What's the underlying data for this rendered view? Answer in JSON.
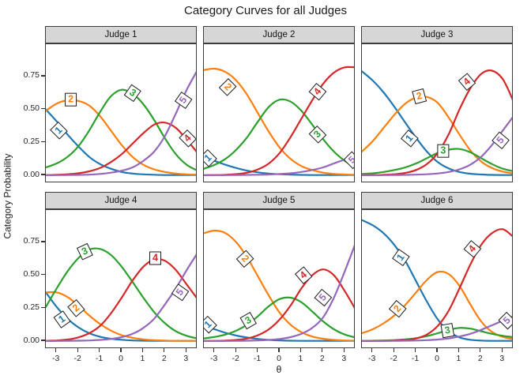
{
  "title": "Category Curves for all Judges",
  "y_axis": {
    "label": "Category  Probability",
    "tick_values": [
      0,
      0.25,
      0.5,
      0.75
    ],
    "tick_labels": [
      "0.00",
      "0.25",
      "0.50",
      "0.75"
    ]
  },
  "x_axis": {
    "label": "θ",
    "tick_values": [
      -3,
      -2,
      -1,
      0,
      1,
      2,
      3
    ],
    "tick_labels": [
      "-3",
      "-2",
      "-1",
      "0",
      "1",
      "2",
      "3"
    ]
  },
  "style": {
    "background": "#FFFFFF",
    "strip_fill": "#D6D6D6",
    "strip_border": "#3C3C3C",
    "panel_border": "#3C3C3C",
    "category_colors": {
      "1": "#1F77B4",
      "2": "#FF7F0E",
      "3": "#2CA02C",
      "4": "#D62728",
      "5": "#9467BD"
    }
  },
  "chart_data": {
    "type": "line",
    "title": "Category Curves for all Judges",
    "xlabel": "θ",
    "ylabel": "Category Probability",
    "xlim": [
      -3.5,
      3.5
    ],
    "ylim": [
      0,
      1
    ],
    "grid": false,
    "legend": "none (curves labeled in-plot with numbered boxes)",
    "x": [
      -3.5,
      -3,
      -2.5,
      -2,
      -1.5,
      -1,
      -0.5,
      0,
      0.5,
      1,
      1.5,
      2,
      2.5,
      3,
      3.5
    ],
    "panels": [
      {
        "facet": "Judge 1",
        "series": [
          {
            "name": "1",
            "color_key": "1",
            "values": [
              0.5,
              0.41,
              0.31,
              0.22,
              0.14,
              0.085,
              0.05,
              0.025,
              0.013,
              0.007,
              0.004,
              0.002,
              0.002,
              0.002,
              0.002
            ],
            "label": {
              "theta": -2.9,
              "p": 0.34,
              "angle": -45
            }
          },
          {
            "name": "2",
            "color_key": "2",
            "values": [
              0.49,
              0.545,
              0.57,
              0.565,
              0.53,
              0.45,
              0.34,
              0.23,
              0.14,
              0.08,
              0.045,
              0.025,
              0.013,
              0.007,
              0.004
            ],
            "label": {
              "theta": -2.35,
              "p": 0.575,
              "angle": 0
            }
          },
          {
            "name": "3",
            "color_key": "3",
            "values": [
              0.06,
              0.09,
              0.14,
              0.22,
              0.34,
              0.48,
              0.6,
              0.65,
              0.62,
              0.54,
              0.42,
              0.28,
              0.16,
              0.08,
              0.035
            ],
            "label": {
              "theta": 0.5,
              "p": 0.625,
              "angle": 35
            }
          },
          {
            "name": "4",
            "color_key": "4",
            "values": [
              0.002,
              0.004,
              0.008,
              0.015,
              0.03,
              0.055,
              0.1,
              0.16,
              0.24,
              0.32,
              0.385,
              0.4,
              0.36,
              0.27,
              0.17
            ],
            "label": {
              "theta": 3.05,
              "p": 0.28,
              "angle": -45
            }
          },
          {
            "name": "5",
            "color_key": "5",
            "values": [
              0.001,
              0.001,
              0.002,
              0.003,
              0.005,
              0.01,
              0.02,
              0.035,
              0.06,
              0.11,
              0.18,
              0.3,
              0.47,
              0.65,
              0.8
            ],
            "label": {
              "theta": 2.85,
              "p": 0.57,
              "angle": -55
            }
          }
        ]
      },
      {
        "facet": "Judge 2",
        "series": [
          {
            "name": "1",
            "color_key": "1",
            "values": [
              0.15,
              0.11,
              0.08,
              0.055,
              0.035,
              0.022,
              0.013,
              0.008,
              0.005,
              0.003,
              0.002,
              0.002,
              0.002,
              0.002,
              0.002
            ],
            "label": {
              "theta": -3.3,
              "p": 0.13,
              "angle": -45
            }
          },
          {
            "name": "2",
            "color_key": "2",
            "values": [
              0.8,
              0.81,
              0.785,
              0.72,
              0.61,
              0.47,
              0.33,
              0.21,
              0.125,
              0.07,
              0.04,
              0.02,
              0.01,
              0.006,
              0.003
            ],
            "label": {
              "theta": -2.4,
              "p": 0.67,
              "angle": 45
            }
          },
          {
            "name": "3",
            "color_key": "3",
            "values": [
              0.05,
              0.08,
              0.125,
              0.195,
              0.29,
              0.41,
              0.52,
              0.575,
              0.56,
              0.49,
              0.385,
              0.275,
              0.18,
              0.11,
              0.06
            ],
            "label": {
              "theta": 1.75,
              "p": 0.31,
              "angle": -45
            }
          },
          {
            "name": "4",
            "color_key": "4",
            "values": [
              0.001,
              0.002,
              0.004,
              0.009,
              0.02,
              0.045,
              0.09,
              0.17,
              0.29,
              0.43,
              0.57,
              0.695,
              0.78,
              0.82,
              0.82
            ],
            "label": {
              "theta": 1.75,
              "p": 0.635,
              "angle": -50
            }
          },
          {
            "name": "5",
            "color_key": "5",
            "values": [
              0.001,
              0.001,
              0.001,
              0.002,
              0.003,
              0.004,
              0.006,
              0.01,
              0.015,
              0.025,
              0.04,
              0.06,
              0.09,
              0.12,
              0.155
            ],
            "label": {
              "theta": 3.35,
              "p": 0.115,
              "angle": -45
            }
          }
        ]
      },
      {
        "facet": "Judge 3",
        "series": [
          {
            "name": "1",
            "color_key": "1",
            "values": [
              0.79,
              0.72,
              0.63,
              0.52,
              0.4,
              0.285,
              0.18,
              0.1,
              0.052,
              0.025,
              0.012,
              0.006,
              0.003,
              0.002,
              0.002
            ],
            "label": {
              "theta": -1.3,
              "p": 0.28,
              "angle": -50
            }
          },
          {
            "name": "2",
            "color_key": "2",
            "values": [
              0.18,
              0.26,
              0.36,
              0.46,
              0.545,
              0.59,
              0.595,
              0.55,
              0.44,
              0.31,
              0.19,
              0.105,
              0.055,
              0.028,
              0.014
            ],
            "label": {
              "theta": -0.85,
              "p": 0.6,
              "angle": -15
            }
          },
          {
            "name": "3",
            "color_key": "3",
            "values": [
              0.01,
              0.015,
              0.025,
              0.04,
              0.06,
              0.09,
              0.13,
              0.17,
              0.195,
              0.2,
              0.175,
              0.13,
              0.085,
              0.05,
              0.03
            ],
            "label": {
              "theta": 0.25,
              "p": 0.185,
              "angle": 0
            }
          },
          {
            "name": "4",
            "color_key": "4",
            "values": [
              0.001,
              0.002,
              0.004,
              0.008,
              0.018,
              0.04,
              0.085,
              0.17,
              0.31,
              0.5,
              0.66,
              0.77,
              0.795,
              0.73,
              0.56
            ],
            "label": {
              "theta": 1.35,
              "p": 0.71,
              "angle": -40
            }
          },
          {
            "name": "5",
            "color_key": "5",
            "values": [
              0.001,
              0.001,
              0.001,
              0.002,
              0.003,
              0.005,
              0.008,
              0.014,
              0.025,
              0.045,
              0.08,
              0.14,
              0.23,
              0.34,
              0.45
            ],
            "label": {
              "theta": 2.9,
              "p": 0.265,
              "angle": -50
            }
          }
        ]
      },
      {
        "facet": "Judge 4",
        "series": [
          {
            "name": "1",
            "color_key": "1",
            "values": [
              0.37,
              0.26,
              0.17,
              0.105,
              0.06,
              0.033,
              0.018,
              0.01,
              0.005,
              0.003,
              0.002,
              0.002,
              0.002,
              0.002,
              0.002
            ],
            "label": {
              "theta": -2.75,
              "p": 0.165,
              "angle": -35
            }
          },
          {
            "name": "2",
            "color_key": "2",
            "values": [
              0.37,
              0.37,
              0.335,
              0.27,
              0.195,
              0.13,
              0.08,
              0.045,
              0.025,
              0.013,
              0.007,
              0.004,
              0.002,
              0.002,
              0.002
            ],
            "label": {
              "theta": -2.1,
              "p": 0.25,
              "angle": -40
            }
          },
          {
            "name": "3",
            "color_key": "3",
            "values": [
              0.26,
              0.4,
              0.53,
              0.63,
              0.695,
              0.7,
              0.655,
              0.565,
              0.45,
              0.33,
              0.22,
              0.135,
              0.075,
              0.04,
              0.02
            ],
            "label": {
              "theta": -1.7,
              "p": 0.68,
              "angle": -25
            }
          },
          {
            "name": "4",
            "color_key": "4",
            "values": [
              0.002,
              0.005,
              0.012,
              0.028,
              0.06,
              0.115,
              0.21,
              0.33,
              0.46,
              0.565,
              0.62,
              0.61,
              0.54,
              0.43,
              0.32
            ],
            "label": {
              "theta": 1.55,
              "p": 0.63,
              "angle": 0
            }
          },
          {
            "name": "5",
            "color_key": "5",
            "values": [
              0.001,
              0.001,
              0.002,
              0.003,
              0.005,
              0.009,
              0.016,
              0.03,
              0.055,
              0.1,
              0.17,
              0.28,
              0.4,
              0.54,
              0.67
            ],
            "label": {
              "theta": 2.7,
              "p": 0.37,
              "angle": -55
            }
          }
        ]
      },
      {
        "facet": "Judge 5",
        "series": [
          {
            "name": "1",
            "color_key": "1",
            "values": [
              0.12,
              0.09,
              0.063,
              0.042,
              0.027,
              0.016,
              0.009,
              0.005,
              0.003,
              0.002,
              0.002,
              0.002,
              0.002,
              0.002,
              0.002
            ],
            "label": {
              "theta": -3.3,
              "p": 0.125,
              "angle": -45
            }
          },
          {
            "name": "2",
            "color_key": "2",
            "values": [
              0.82,
              0.84,
              0.82,
              0.75,
              0.635,
              0.49,
              0.345,
              0.215,
              0.125,
              0.068,
              0.035,
              0.018,
              0.009,
              0.005,
              0.003
            ],
            "label": {
              "theta": -1.6,
              "p": 0.625,
              "angle": 48
            }
          },
          {
            "name": "3",
            "color_key": "3",
            "values": [
              0.02,
              0.032,
              0.05,
              0.08,
              0.125,
              0.19,
              0.265,
              0.32,
              0.33,
              0.295,
              0.225,
              0.15,
              0.09,
              0.05,
              0.027
            ],
            "label": {
              "theta": -1.45,
              "p": 0.155,
              "angle": -30
            }
          },
          {
            "name": "4",
            "color_key": "4",
            "values": [
              0.001,
              0.002,
              0.004,
              0.009,
              0.02,
              0.045,
              0.09,
              0.165,
              0.27,
              0.4,
              0.5,
              0.545,
              0.5,
              0.38,
              0.24
            ],
            "label": {
              "theta": 1.1,
              "p": 0.5,
              "angle": -40
            }
          },
          {
            "name": "5",
            "color_key": "5",
            "values": [
              0.001,
              0.001,
              0.001,
              0.002,
              0.003,
              0.005,
              0.009,
              0.016,
              0.03,
              0.055,
              0.1,
              0.18,
              0.33,
              0.53,
              0.745
            ],
            "label": {
              "theta": 2.0,
              "p": 0.33,
              "angle": -50
            }
          }
        ]
      },
      {
        "facet": "Judge 6",
        "series": [
          {
            "name": "1",
            "color_key": "1",
            "values": [
              0.92,
              0.88,
              0.82,
              0.73,
              0.61,
              0.455,
              0.3,
              0.165,
              0.075,
              0.028,
              0.01,
              0.004,
              0.002,
              0.002,
              0.002
            ],
            "label": {
              "theta": -1.7,
              "p": 0.635,
              "angle": -55
            }
          },
          {
            "name": "2",
            "color_key": "2",
            "values": [
              0.06,
              0.09,
              0.135,
              0.195,
              0.275,
              0.37,
              0.465,
              0.525,
              0.51,
              0.42,
              0.28,
              0.15,
              0.07,
              0.032,
              0.015
            ],
            "label": {
              "theta": -1.85,
              "p": 0.245,
              "angle": -50
            }
          },
          {
            "name": "3",
            "color_key": "3",
            "values": [
              0.002,
              0.003,
              0.005,
              0.008,
              0.013,
              0.022,
              0.038,
              0.06,
              0.085,
              0.1,
              0.095,
              0.075,
              0.055,
              0.04,
              0.03
            ],
            "label": {
              "theta": 0.45,
              "p": 0.08,
              "angle": -10
            }
          },
          {
            "name": "4",
            "color_key": "4",
            "values": [
              0.001,
              0.001,
              0.002,
              0.004,
              0.009,
              0.02,
              0.05,
              0.115,
              0.23,
              0.4,
              0.58,
              0.73,
              0.82,
              0.85,
              0.79
            ],
            "label": {
              "theta": 1.6,
              "p": 0.7,
              "angle": -50
            }
          },
          {
            "name": "5",
            "color_key": "5",
            "values": [
              0.001,
              0.001,
              0.001,
              0.002,
              0.003,
              0.004,
              0.007,
              0.012,
              0.02,
              0.035,
              0.055,
              0.085,
              0.12,
              0.155,
              0.19
            ],
            "label": {
              "theta": 3.2,
              "p": 0.155,
              "angle": -45
            }
          }
        ]
      }
    ]
  }
}
